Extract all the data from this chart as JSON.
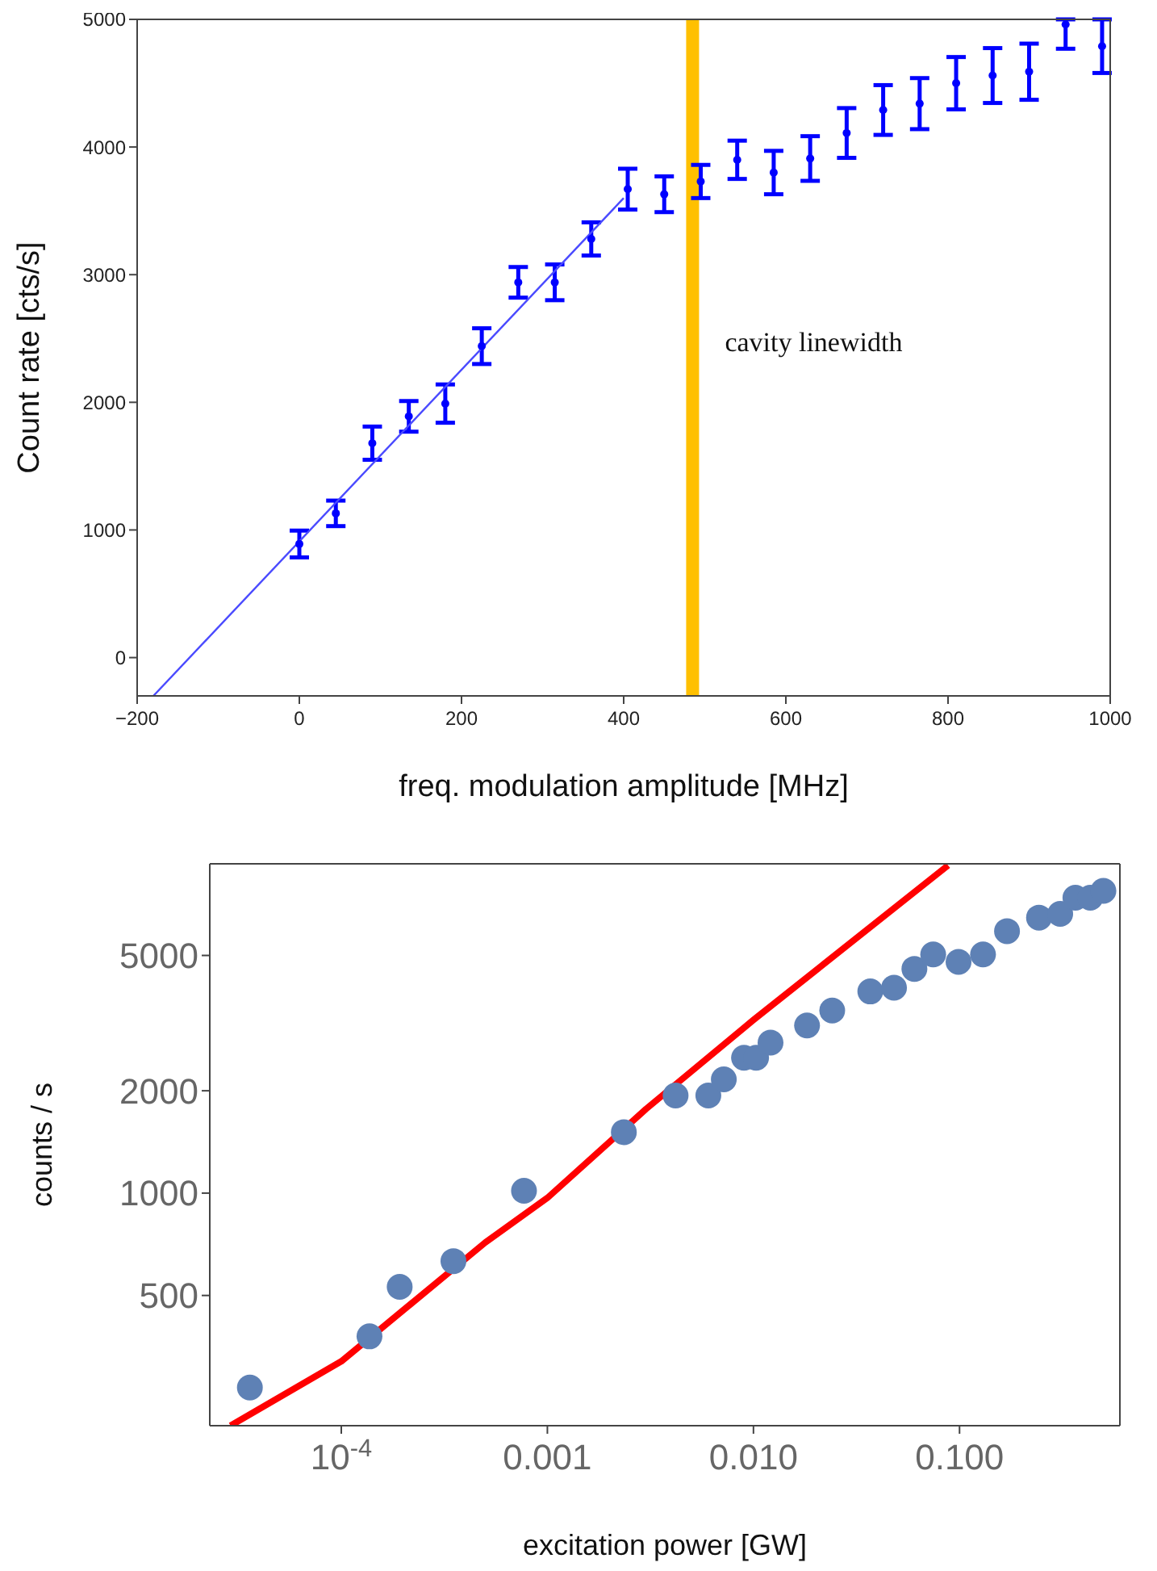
{
  "chart_data": [
    {
      "type": "scatter",
      "xlabel": "freq. modulation amplitude [MHz]",
      "ylabel": "Count rate [cts/s]",
      "xlim": [
        -200,
        1000
      ],
      "ylim": [
        -300,
        5000
      ],
      "xticks": [
        {
          "value": -200,
          "label": "−200"
        },
        0,
        200,
        400,
        600,
        800,
        1000
      ],
      "yticks": [
        0,
        1000,
        2000,
        3000,
        4000,
        5000
      ],
      "series": [
        {
          "type": "scatter",
          "color": "#0000ff",
          "marker": "circle",
          "x": [
            0,
            45,
            90,
            135,
            180,
            225,
            270,
            315,
            360,
            405,
            450,
            495,
            540,
            585,
            630,
            675,
            720,
            765,
            810,
            855,
            900,
            945,
            990
          ],
          "values": [
            890,
            1130,
            1680,
            1890,
            1990,
            2440,
            2940,
            2940,
            3280,
            3670,
            3630,
            3730,
            3900,
            3800,
            3910,
            4110,
            4290,
            4340,
            4500,
            4560,
            4590,
            4960,
            4790
          ],
          "errors": [
            105,
            100,
            130,
            120,
            150,
            140,
            120,
            140,
            130,
            160,
            140,
            130,
            150,
            170,
            175,
            195,
            195,
            200,
            205,
            215,
            220,
            [
              4770,
              5000
            ],
            210
          ]
        },
        {
          "type": "line",
          "color": "#4a4aff",
          "marker": "none",
          "x": [
            -180,
            400
          ],
          "values": [
            -300,
            3600
          ]
        }
      ],
      "ref_lines": [
        {
          "axis": "x",
          "value": 485,
          "label": "cavity linewidth",
          "color": "#ffc000"
        }
      ]
    },
    {
      "type": "scatter",
      "xlabel": "excitation power [GW]",
      "ylabel": "counts / s",
      "log": "xy",
      "xlim": [
        2.3e-05,
        0.6
      ],
      "ylim": [
        207,
        9300
      ],
      "xticks": [
        {
          "value": 0.0001,
          "label": "10$^{-4}$"
        },
        0.001,
        {
          "value": 0.01,
          "label": "0.010"
        },
        {
          "value": 0.1,
          "label": "0.100"
        }
      ],
      "yticks": [
        500,
        1000,
        2000,
        5000
      ],
      "series": [
        {
          "type": "scatter",
          "color": "#5e81b5",
          "marker": "circle",
          "x": [
            3.6e-05,
            0.000137,
            0.000192,
            0.00035,
            0.00077,
            0.00235,
            0.00419,
            0.00604,
            0.00718,
            0.009,
            0.0103,
            0.0121,
            0.0182,
            0.0241,
            0.0369,
            0.0481,
            0.0604,
            0.0745,
            0.0989,
            0.13,
            0.17,
            0.243,
            0.308,
            0.365,
            0.431,
            0.499
          ],
          "values": [
            268,
            379,
            530,
            631,
            1016,
            1511,
            1937,
            1937,
            2161,
            2500,
            2500,
            2770,
            3112,
            3443,
            3918,
            4018,
            4565,
            5036,
            4786,
            5036,
            5894,
            6460,
            6627,
            7390,
            7390,
            7745
          ]
        },
        {
          "type": "line",
          "color": "#ff0000",
          "marker": "none",
          "x": [
            2.9e-05,
            0.0001,
            0.0005,
            0.001,
            0.00301,
            0.01,
            0.088
          ],
          "values": [
            207,
            320,
            716,
            968,
            1767,
            3230,
            9200
          ]
        }
      ]
    }
  ]
}
